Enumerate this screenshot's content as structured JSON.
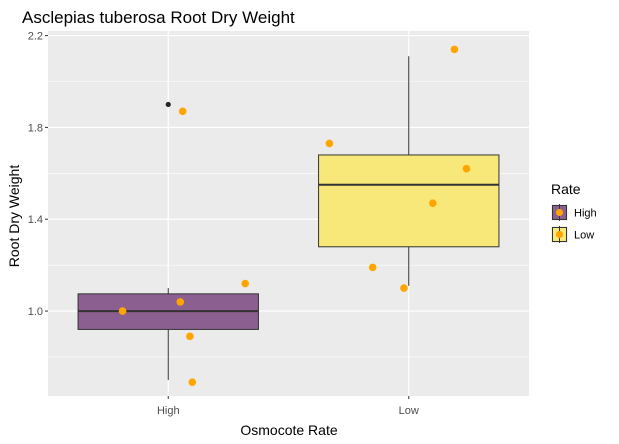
{
  "chart_data": {
    "type": "box",
    "title": "Asclepias tuberosa Root Dry Weight",
    "xlabel": "Osmocote Rate",
    "ylabel": "Root Dry Weight",
    "categories": [
      "High",
      "Low"
    ],
    "ylim": [
      0.63,
      2.22
    ],
    "yticks": [
      1.0,
      1.4,
      1.8,
      2.2
    ],
    "yticklabels": [
      "1.0",
      "1.4",
      "1.8",
      "2.2"
    ],
    "grid": true,
    "background": "#ebebeb",
    "boxes": [
      {
        "category": "High",
        "q1": 0.92,
        "median": 1.0,
        "q3": 1.075,
        "whisker_low": 0.7,
        "whisker_high": 1.1,
        "outliers": [
          1.9
        ],
        "fill": "#8b5f8f"
      },
      {
        "category": "Low",
        "q1": 1.28,
        "median": 1.55,
        "q3": 1.68,
        "whisker_low": 1.11,
        "whisker_high": 2.11,
        "outliers": [],
        "fill": "#f7e879"
      }
    ],
    "points": [
      {
        "category": "High",
        "jitter": 0.06,
        "y": 1.87
      },
      {
        "category": "High",
        "jitter": -0.19,
        "y": 1.0
      },
      {
        "category": "High",
        "jitter": 0.05,
        "y": 1.04
      },
      {
        "category": "High",
        "jitter": 0.09,
        "y": 0.89
      },
      {
        "category": "High",
        "jitter": 0.1,
        "y": 0.69
      },
      {
        "category": "High",
        "jitter": 0.32,
        "y": 1.12
      },
      {
        "category": "Low",
        "jitter": -0.33,
        "y": 1.73
      },
      {
        "category": "Low",
        "jitter": -0.15,
        "y": 1.19
      },
      {
        "category": "Low",
        "jitter": -0.02,
        "y": 1.1
      },
      {
        "category": "Low",
        "jitter": 0.1,
        "y": 1.47
      },
      {
        "category": "Low",
        "jitter": 0.19,
        "y": 2.14
      },
      {
        "category": "Low",
        "jitter": 0.24,
        "y": 1.62
      }
    ],
    "point_color": "#ffa500",
    "outlier_color": "#262626",
    "legend": {
      "title": "Rate",
      "position": "right",
      "entries": [
        {
          "label": "High",
          "fill": "#8b5f8f"
        },
        {
          "label": "Low",
          "fill": "#f7e879"
        }
      ]
    }
  }
}
